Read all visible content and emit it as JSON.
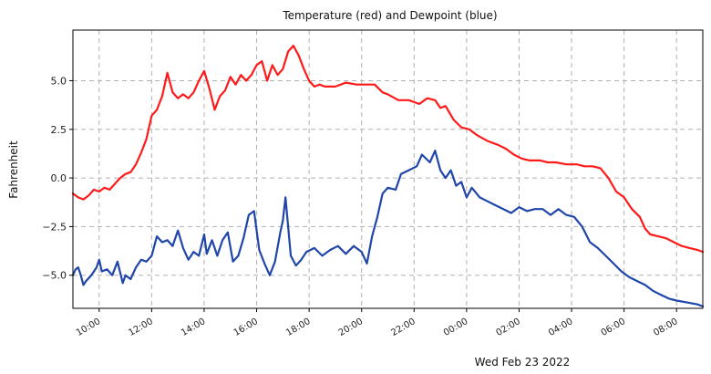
{
  "chart_data": {
    "type": "line",
    "title": "Temperature (red) and Dewpoint (blue)",
    "ylabel": "Fahrenheit",
    "xlabel": "Wed Feb 23 2022",
    "xlim_hours": [
      9.0,
      33.0
    ],
    "ylim": [
      -6.7,
      7.6
    ],
    "grid": true,
    "grid_style": "dashed",
    "xticks": [
      {
        "hour": 10,
        "label": "10:00"
      },
      {
        "hour": 12,
        "label": "12:00"
      },
      {
        "hour": 14,
        "label": "14:00"
      },
      {
        "hour": 16,
        "label": "16:00"
      },
      {
        "hour": 18,
        "label": "18:00"
      },
      {
        "hour": 20,
        "label": "20:00"
      },
      {
        "hour": 22,
        "label": "22:00"
      },
      {
        "hour": 24,
        "label": "00:00"
      },
      {
        "hour": 26,
        "label": "02:00"
      },
      {
        "hour": 28,
        "label": "04:00"
      },
      {
        "hour": 30,
        "label": "06:00"
      },
      {
        "hour": 32,
        "label": "08:00"
      }
    ],
    "yticks": [
      {
        "value": 5.0,
        "label": "5.0"
      },
      {
        "value": 2.5,
        "label": "2.5"
      },
      {
        "value": 0.0,
        "label": "0.0"
      },
      {
        "value": -2.5,
        "label": "−2.5"
      },
      {
        "value": -5.0,
        "label": "−5.0"
      }
    ],
    "series": [
      {
        "color": "#ff1a1a",
        "points": [
          [
            9.0,
            -0.8
          ],
          [
            9.2,
            -1.0
          ],
          [
            9.4,
            -1.1
          ],
          [
            9.6,
            -0.9
          ],
          [
            9.8,
            -0.6
          ],
          [
            10.0,
            -0.7
          ],
          [
            10.2,
            -0.5
          ],
          [
            10.4,
            -0.6
          ],
          [
            10.6,
            -0.3
          ],
          [
            10.8,
            0.0
          ],
          [
            11.0,
            0.2
          ],
          [
            11.2,
            0.3
          ],
          [
            11.4,
            0.7
          ],
          [
            11.6,
            1.3
          ],
          [
            11.8,
            2.0
          ],
          [
            12.0,
            3.2
          ],
          [
            12.2,
            3.5
          ],
          [
            12.4,
            4.2
          ],
          [
            12.6,
            5.4
          ],
          [
            12.8,
            4.4
          ],
          [
            13.0,
            4.1
          ],
          [
            13.2,
            4.3
          ],
          [
            13.4,
            4.1
          ],
          [
            13.6,
            4.4
          ],
          [
            13.8,
            5.0
          ],
          [
            14.0,
            5.5
          ],
          [
            14.2,
            4.6
          ],
          [
            14.4,
            3.5
          ],
          [
            14.6,
            4.2
          ],
          [
            14.8,
            4.5
          ],
          [
            15.0,
            5.2
          ],
          [
            15.2,
            4.8
          ],
          [
            15.4,
            5.3
          ],
          [
            15.6,
            5.0
          ],
          [
            15.8,
            5.3
          ],
          [
            16.0,
            5.8
          ],
          [
            16.2,
            6.0
          ],
          [
            16.4,
            5.0
          ],
          [
            16.6,
            5.8
          ],
          [
            16.8,
            5.3
          ],
          [
            17.0,
            5.6
          ],
          [
            17.2,
            6.5
          ],
          [
            17.4,
            6.8
          ],
          [
            17.6,
            6.3
          ],
          [
            17.8,
            5.6
          ],
          [
            18.0,
            5.0
          ],
          [
            18.2,
            4.7
          ],
          [
            18.4,
            4.8
          ],
          [
            18.6,
            4.7
          ],
          [
            19.0,
            4.7
          ],
          [
            19.4,
            4.9
          ],
          [
            19.8,
            4.8
          ],
          [
            20.2,
            4.8
          ],
          [
            20.5,
            4.8
          ],
          [
            20.8,
            4.4
          ],
          [
            21.0,
            4.3
          ],
          [
            21.4,
            4.0
          ],
          [
            21.8,
            4.0
          ],
          [
            22.2,
            3.8
          ],
          [
            22.5,
            4.1
          ],
          [
            22.8,
            4.0
          ],
          [
            23.0,
            3.6
          ],
          [
            23.2,
            3.7
          ],
          [
            23.5,
            3.0
          ],
          [
            23.8,
            2.6
          ],
          [
            24.1,
            2.5
          ],
          [
            24.4,
            2.2
          ],
          [
            24.8,
            1.9
          ],
          [
            25.2,
            1.7
          ],
          [
            25.5,
            1.5
          ],
          [
            25.8,
            1.2
          ],
          [
            26.1,
            1.0
          ],
          [
            26.4,
            0.9
          ],
          [
            26.8,
            0.9
          ],
          [
            27.1,
            0.8
          ],
          [
            27.4,
            0.8
          ],
          [
            27.8,
            0.7
          ],
          [
            28.2,
            0.7
          ],
          [
            28.5,
            0.6
          ],
          [
            28.8,
            0.6
          ],
          [
            29.1,
            0.5
          ],
          [
            29.4,
            0.0
          ],
          [
            29.7,
            -0.7
          ],
          [
            30.0,
            -1.0
          ],
          [
            30.3,
            -1.6
          ],
          [
            30.6,
            -2.0
          ],
          [
            30.8,
            -2.6
          ],
          [
            31.0,
            -2.9
          ],
          [
            31.3,
            -3.0
          ],
          [
            31.6,
            -3.1
          ],
          [
            31.9,
            -3.3
          ],
          [
            32.2,
            -3.5
          ],
          [
            32.5,
            -3.6
          ],
          [
            32.8,
            -3.7
          ],
          [
            33.0,
            -3.8
          ]
        ]
      },
      {
        "color": "#1f46a8",
        "points": [
          [
            9.0,
            -5.0
          ],
          [
            9.1,
            -4.7
          ],
          [
            9.2,
            -4.6
          ],
          [
            9.3,
            -5.0
          ],
          [
            9.4,
            -5.5
          ],
          [
            9.5,
            -5.3
          ],
          [
            9.7,
            -5.0
          ],
          [
            9.9,
            -4.6
          ],
          [
            10.0,
            -4.2
          ],
          [
            10.1,
            -4.8
          ],
          [
            10.3,
            -4.7
          ],
          [
            10.5,
            -5.0
          ],
          [
            10.7,
            -4.3
          ],
          [
            10.9,
            -5.4
          ],
          [
            11.0,
            -5.0
          ],
          [
            11.2,
            -5.2
          ],
          [
            11.4,
            -4.6
          ],
          [
            11.6,
            -4.2
          ],
          [
            11.8,
            -4.3
          ],
          [
            12.0,
            -4.0
          ],
          [
            12.2,
            -3.0
          ],
          [
            12.4,
            -3.3
          ],
          [
            12.6,
            -3.2
          ],
          [
            12.8,
            -3.5
          ],
          [
            13.0,
            -2.7
          ],
          [
            13.2,
            -3.6
          ],
          [
            13.4,
            -4.2
          ],
          [
            13.6,
            -3.8
          ],
          [
            13.8,
            -4.0
          ],
          [
            14.0,
            -2.9
          ],
          [
            14.1,
            -3.9
          ],
          [
            14.3,
            -3.2
          ],
          [
            14.5,
            -4.0
          ],
          [
            14.7,
            -3.2
          ],
          [
            14.9,
            -2.8
          ],
          [
            15.1,
            -4.3
          ],
          [
            15.3,
            -4.0
          ],
          [
            15.5,
            -3.1
          ],
          [
            15.7,
            -1.9
          ],
          [
            15.9,
            -1.7
          ],
          [
            16.1,
            -3.7
          ],
          [
            16.3,
            -4.4
          ],
          [
            16.5,
            -5.0
          ],
          [
            16.7,
            -4.3
          ],
          [
            16.9,
            -2.8
          ],
          [
            17.0,
            -2.2
          ],
          [
            17.1,
            -1.0
          ],
          [
            17.3,
            -4.0
          ],
          [
            17.5,
            -4.5
          ],
          [
            17.7,
            -4.2
          ],
          [
            17.9,
            -3.8
          ],
          [
            18.2,
            -3.6
          ],
          [
            18.5,
            -4.0
          ],
          [
            18.8,
            -3.7
          ],
          [
            19.1,
            -3.5
          ],
          [
            19.4,
            -3.9
          ],
          [
            19.7,
            -3.5
          ],
          [
            20.0,
            -3.8
          ],
          [
            20.2,
            -4.4
          ],
          [
            20.4,
            -3.0
          ],
          [
            20.6,
            -2.0
          ],
          [
            20.8,
            -0.8
          ],
          [
            21.0,
            -0.5
          ],
          [
            21.3,
            -0.6
          ],
          [
            21.5,
            0.2
          ],
          [
            21.8,
            0.4
          ],
          [
            22.1,
            0.6
          ],
          [
            22.3,
            1.2
          ],
          [
            22.6,
            0.8
          ],
          [
            22.8,
            1.4
          ],
          [
            23.0,
            0.4
          ],
          [
            23.2,
            0.0
          ],
          [
            23.4,
            0.4
          ],
          [
            23.6,
            -0.4
          ],
          [
            23.8,
            -0.2
          ],
          [
            24.0,
            -1.0
          ],
          [
            24.2,
            -0.5
          ],
          [
            24.5,
            -1.0
          ],
          [
            24.8,
            -1.2
          ],
          [
            25.1,
            -1.4
          ],
          [
            25.4,
            -1.6
          ],
          [
            25.7,
            -1.8
          ],
          [
            26.0,
            -1.5
          ],
          [
            26.3,
            -1.7
          ],
          [
            26.6,
            -1.6
          ],
          [
            26.9,
            -1.6
          ],
          [
            27.2,
            -1.9
          ],
          [
            27.5,
            -1.6
          ],
          [
            27.8,
            -1.9
          ],
          [
            28.1,
            -2.0
          ],
          [
            28.4,
            -2.5
          ],
          [
            28.7,
            -3.3
          ],
          [
            29.0,
            -3.6
          ],
          [
            29.3,
            -4.0
          ],
          [
            29.6,
            -4.4
          ],
          [
            29.9,
            -4.8
          ],
          [
            30.2,
            -5.1
          ],
          [
            30.5,
            -5.3
          ],
          [
            30.8,
            -5.5
          ],
          [
            31.1,
            -5.8
          ],
          [
            31.4,
            -6.0
          ],
          [
            31.7,
            -6.2
          ],
          [
            32.0,
            -6.3
          ],
          [
            32.4,
            -6.4
          ],
          [
            32.8,
            -6.5
          ],
          [
            33.0,
            -6.6
          ]
        ]
      }
    ]
  }
}
